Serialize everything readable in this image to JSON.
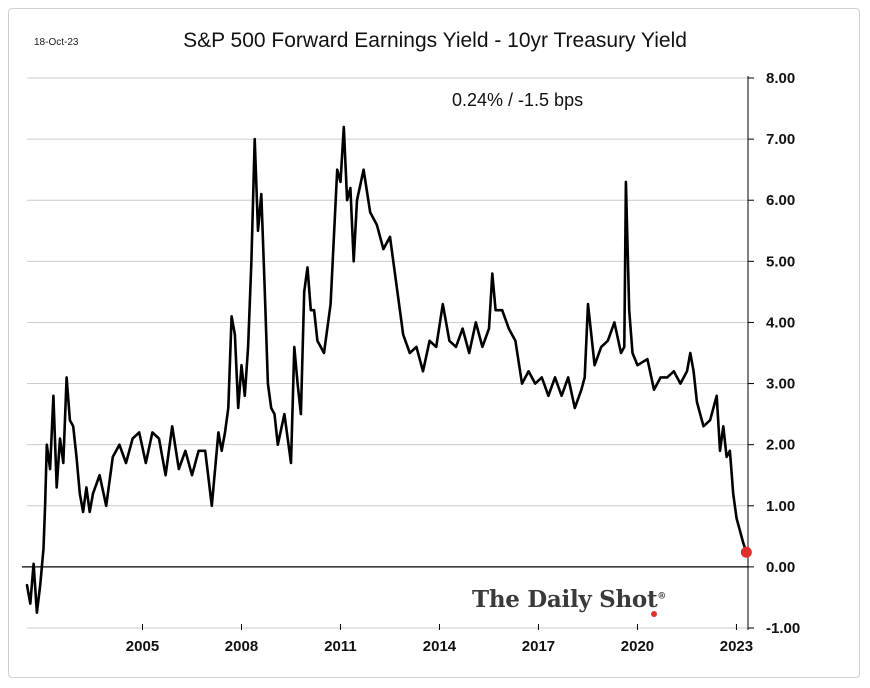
{
  "header": {
    "date": "18-Oct-23",
    "annotation": "0.24%  /  -1.5 bps"
  },
  "brand": {
    "name": "The Daily Shot",
    "mark": "®"
  },
  "colors": {
    "line": "#000000",
    "marker": "#e0302c",
    "grid": "#cccccc",
    "zero_line": "#000000"
  },
  "chart_data": {
    "type": "line",
    "title": "S&P 500 Forward Earnings Yield - 10yr Treasury Yield",
    "xlabel": "",
    "ylabel": "",
    "xlim": [
      2002.0,
      2023.85
    ],
    "ylim": [
      -1.0,
      8.0
    ],
    "y_ticks": [
      "8.00",
      "7.00",
      "6.00",
      "5.00",
      "4.00",
      "3.00",
      "2.00",
      "1.00",
      "0.00",
      "-1.00"
    ],
    "x_ticks": [
      "2005",
      "2008",
      "2011",
      "2014",
      "2017",
      "2020",
      "2023"
    ],
    "grid": "horizontal",
    "y_axis_position": "right",
    "last_point": {
      "x": 2023.8,
      "y": 0.24
    },
    "series": [
      {
        "x": [
          2002.0,
          2002.1,
          2002.2,
          2002.3,
          2002.4,
          2002.5,
          2002.55,
          2002.6,
          2002.7,
          2002.8,
          2002.9,
          2003.0,
          2003.1,
          2003.2,
          2003.3,
          2003.4,
          2003.5,
          2003.6,
          2003.7,
          2003.8,
          2003.9,
          2004.0,
          2004.2,
          2004.4,
          2004.6,
          2004.8,
          2005.0,
          2005.2,
          2005.4,
          2005.6,
          2005.8,
          2006.0,
          2006.2,
          2006.4,
          2006.6,
          2006.8,
          2007.0,
          2007.2,
          2007.4,
          2007.6,
          2007.8,
          2007.9,
          2008.0,
          2008.1,
          2008.2,
          2008.3,
          2008.4,
          2008.5,
          2008.6,
          2008.7,
          2008.8,
          2008.9,
          2009.0,
          2009.1,
          2009.2,
          2009.3,
          2009.4,
          2009.5,
          2009.6,
          2009.8,
          2010.0,
          2010.1,
          2010.2,
          2010.3,
          2010.4,
          2010.5,
          2010.6,
          2010.7,
          2010.8,
          2011.0,
          2011.2,
          2011.4,
          2011.5,
          2011.6,
          2011.7,
          2011.8,
          2011.9,
          2012.0,
          2012.2,
          2012.4,
          2012.6,
          2012.8,
          2013.0,
          2013.2,
          2013.4,
          2013.6,
          2013.8,
          2014.0,
          2014.2,
          2014.4,
          2014.6,
          2014.8,
          2015.0,
          2015.2,
          2015.4,
          2015.6,
          2015.8,
          2016.0,
          2016.1,
          2016.2,
          2016.4,
          2016.6,
          2016.8,
          2017.0,
          2017.2,
          2017.4,
          2017.6,
          2017.8,
          2018.0,
          2018.2,
          2018.4,
          2018.6,
          2018.8,
          2018.9,
          2019.0,
          2019.2,
          2019.4,
          2019.6,
          2019.8,
          2020.0,
          2020.1,
          2020.15,
          2020.25,
          2020.35,
          2020.5,
          2020.8,
          2021.0,
          2021.2,
          2021.4,
          2021.6,
          2021.8,
          2022.0,
          2022.1,
          2022.2,
          2022.3,
          2022.5,
          2022.7,
          2022.9,
          2023.0,
          2023.1,
          2023.2,
          2023.3,
          2023.4,
          2023.5,
          2023.6,
          2023.7,
          2023.8
        ],
        "values": [
          -0.3,
          -0.6,
          0.05,
          -0.75,
          -0.3,
          0.3,
          1.0,
          2.0,
          1.6,
          2.8,
          1.3,
          2.1,
          1.7,
          3.1,
          2.4,
          2.3,
          1.8,
          1.2,
          0.9,
          1.3,
          0.9,
          1.2,
          1.5,
          1.0,
          1.8,
          2.0,
          1.7,
          2.1,
          2.2,
          1.7,
          2.2,
          2.1,
          1.5,
          2.3,
          1.6,
          1.9,
          1.5,
          1.9,
          1.9,
          1.0,
          2.2,
          1.9,
          2.2,
          2.6,
          4.1,
          3.8,
          2.6,
          3.3,
          2.8,
          3.6,
          5.0,
          7.0,
          5.5,
          6.1,
          4.6,
          3.0,
          2.6,
          2.5,
          2.0,
          2.5,
          1.7,
          3.6,
          3.0,
          2.5,
          4.5,
          4.9,
          4.2,
          4.2,
          3.7,
          3.5,
          4.3,
          6.5,
          6.3,
          7.2,
          6.0,
          6.2,
          5.0,
          6.0,
          6.5,
          5.8,
          5.6,
          5.2,
          5.4,
          4.6,
          3.8,
          3.5,
          3.6,
          3.2,
          3.7,
          3.6,
          4.3,
          3.7,
          3.6,
          3.9,
          3.5,
          4.0,
          3.6,
          3.9,
          4.8,
          4.2,
          4.2,
          3.9,
          3.7,
          3.0,
          3.2,
          3.0,
          3.1,
          2.8,
          3.1,
          2.8,
          3.1,
          2.6,
          2.9,
          3.1,
          4.3,
          3.3,
          3.6,
          3.7,
          4.0,
          3.5,
          3.6,
          6.3,
          4.2,
          3.5,
          3.3,
          3.4,
          2.9,
          3.1,
          3.1,
          3.2,
          3.0,
          3.2,
          3.5,
          3.2,
          2.7,
          2.3,
          2.4,
          2.8,
          1.9,
          2.3,
          1.8,
          1.9,
          1.2,
          0.8,
          0.6,
          0.4,
          0.24
        ]
      }
    ]
  }
}
